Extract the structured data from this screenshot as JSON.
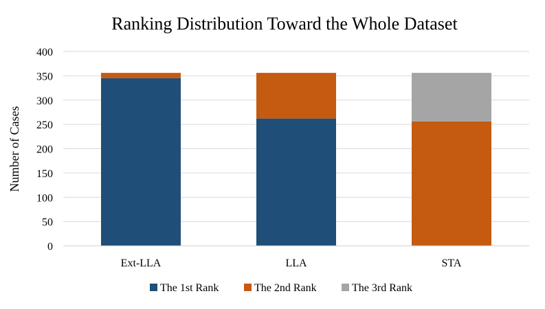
{
  "chart_data": {
    "type": "bar",
    "stacked": true,
    "title": "Ranking Distribution Toward the Whole Dataset",
    "xlabel": "",
    "ylabel": "Number of Cases",
    "ylim": [
      0,
      400
    ],
    "yticks": [
      "0",
      "50",
      "100",
      "150",
      "200",
      "250",
      "300",
      "350",
      "400"
    ],
    "categories": [
      "Ext-LLA",
      "LLA",
      "STA"
    ],
    "series": [
      {
        "name": "The 1st Rank",
        "color": "#1f4e79",
        "values": [
          345,
          262,
          0
        ]
      },
      {
        "name": "The 2nd Rank",
        "color": "#c55a11",
        "values": [
          11,
          94,
          256
        ]
      },
      {
        "name": "The 3rd Rank",
        "color": "#a5a5a5",
        "values": [
          0,
          0,
          100
        ]
      }
    ],
    "grid": true,
    "legend_position": "bottom"
  }
}
